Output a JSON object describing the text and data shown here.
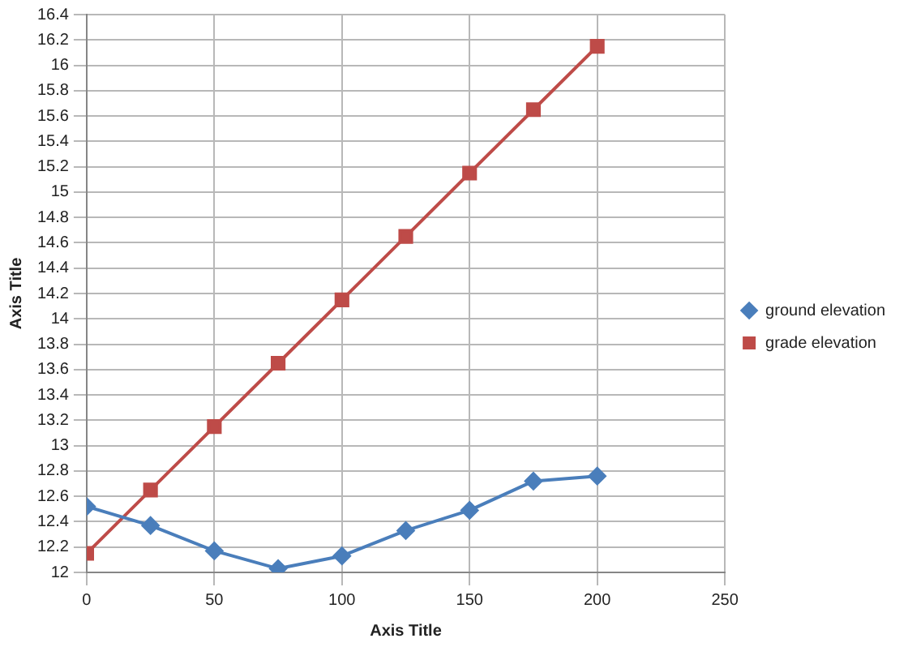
{
  "chart_data": {
    "type": "line",
    "xlabel": "Axis Title",
    "ylabel": "Axis Title",
    "x": [
      0,
      25,
      50,
      75,
      100,
      125,
      150,
      175,
      200
    ],
    "series": [
      {
        "name": "ground elevation",
        "color": "#4a7ebb",
        "marker": "diamond",
        "values": [
          12.52,
          12.37,
          12.17,
          12.03,
          12.13,
          12.33,
          12.49,
          12.72,
          12.76
        ]
      },
      {
        "name": "grade elevation",
        "color": "#be4b48",
        "marker": "square",
        "values": [
          12.15,
          12.65,
          13.15,
          13.65,
          14.15,
          14.65,
          15.15,
          15.65,
          16.15
        ]
      }
    ],
    "xlim": [
      0,
      250
    ],
    "xticks": [
      0,
      50,
      100,
      150,
      200,
      250
    ],
    "ylim": [
      12,
      16.4
    ],
    "yticks": [
      12,
      12.2,
      12.4,
      12.6,
      12.8,
      13,
      13.2,
      13.4,
      13.6,
      13.8,
      14,
      14.2,
      14.4,
      14.6,
      14.8,
      15,
      15.2,
      15.4,
      15.6,
      15.8,
      16,
      16.2,
      16.4
    ],
    "grid": true,
    "legend": "right",
    "line_style": "solid"
  }
}
